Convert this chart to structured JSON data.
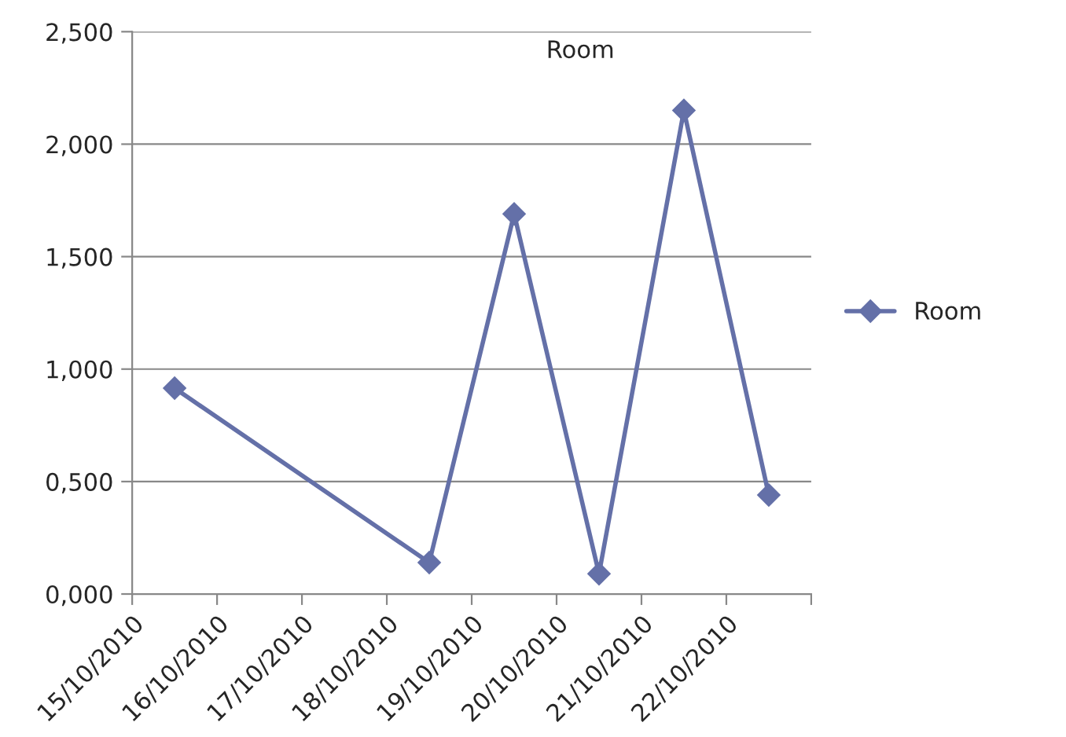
{
  "chart_data": {
    "type": "line",
    "title": "Room",
    "x": [
      "2010-10-15T12:00",
      "2010-10-18T12:00",
      "2010-10-19T12:00",
      "2010-10-20T12:00",
      "2010-10-21T12:00",
      "2010-10-22T12:00"
    ],
    "series": [
      {
        "name": "Room",
        "color": "#6470a8",
        "values": [
          0.915,
          0.14,
          1.69,
          0.09,
          2.15,
          0.44
        ]
      }
    ],
    "xlim": [
      "2010-10-15",
      "2010-10-23"
    ],
    "xticks": [
      {
        "value": "2010-10-15",
        "label": "15/10/2010"
      },
      {
        "value": "2010-10-16",
        "label": "16/10/2010"
      },
      {
        "value": "2010-10-17",
        "label": "17/10/2010"
      },
      {
        "value": "2010-10-18",
        "label": "18/10/2010"
      },
      {
        "value": "2010-10-19",
        "label": "19/10/2010"
      },
      {
        "value": "2010-10-20",
        "label": "20/10/2010"
      },
      {
        "value": "2010-10-21",
        "label": "21/10/2010"
      },
      {
        "value": "2010-10-22",
        "label": "22/10/2010"
      },
      {
        "value": "2010-10-23",
        "label": null
      }
    ],
    "ylim": [
      0,
      2.5
    ],
    "yticks": [
      {
        "value": 0,
        "label": "0,000"
      },
      {
        "value": 0.5,
        "label": "0,500"
      },
      {
        "value": 1,
        "label": "1,000"
      },
      {
        "value": 1.5,
        "label": "1,500"
      },
      {
        "value": 2,
        "label": "2,000"
      },
      {
        "value": 2.5,
        "label": "2,500"
      }
    ],
    "grid": "y",
    "legend": "right",
    "marker": "diamond",
    "line_style": "solid"
  }
}
